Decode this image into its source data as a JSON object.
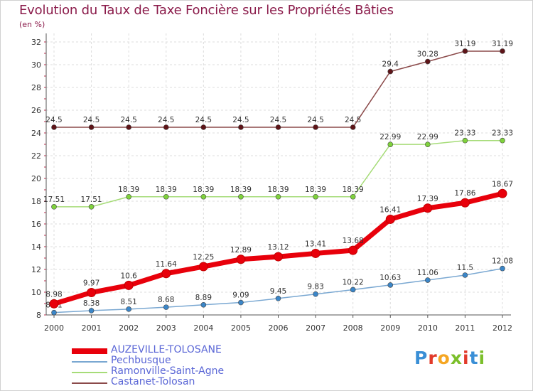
{
  "title": "Evolution du Taux de Taxe Foncière sur les Propriétés Bâties",
  "unit_label": "(en %)",
  "brand": {
    "text": "Proxiti",
    "letters": [
      {
        "ch": "P",
        "color": "#3a8fd6"
      },
      {
        "ch": "r",
        "color": "#e23a2a"
      },
      {
        "ch": "o",
        "color": "#f5a623"
      },
      {
        "ch": "x",
        "color": "#7bbf2a"
      },
      {
        "ch": "i",
        "color": "#e23a2a"
      },
      {
        "ch": "t",
        "color": "#3a8fd6"
      },
      {
        "ch": "i",
        "color": "#7bbf2a"
      }
    ]
  },
  "chart_data": {
    "type": "line",
    "title": "Evolution du Taux de Taxe Foncière sur les Propriétés Bâties",
    "ylabel": "(en %)",
    "xlabel": "",
    "x": [
      "2000",
      "2001",
      "2002",
      "2003",
      "2004",
      "2005",
      "2006",
      "2007",
      "2008",
      "2009",
      "2010",
      "2011",
      "2012"
    ],
    "ylim": [
      8,
      32
    ],
    "yticks": [
      "8",
      "10",
      "12",
      "14",
      "16",
      "18",
      "20",
      "22",
      "24",
      "26",
      "28",
      "30",
      "32"
    ],
    "grid": true,
    "legend_position": "bottom-left",
    "series": [
      {
        "name": "AUZEVILLE-TOLOSANE",
        "color": "#e8000b",
        "marker_color": "#e8000b",
        "emphasis": true,
        "values": [
          8.98,
          9.97,
          10.6,
          11.64,
          12.25,
          12.89,
          13.12,
          13.41,
          13.68,
          16.41,
          17.39,
          17.86,
          18.67
        ],
        "labels": [
          "8.98",
          "9.97",
          "10.6",
          "11.64",
          "12.25",
          "12.89",
          "13.12",
          "13.41",
          "13.68",
          "16.41",
          "17.39",
          "17.86",
          "18.67"
        ]
      },
      {
        "name": "Pechbusque",
        "color": "#7aa8d2",
        "marker_color": "#3b86c8",
        "emphasis": false,
        "values": [
          8.21,
          8.38,
          8.51,
          8.68,
          8.89,
          9.09,
          9.45,
          9.83,
          10.22,
          10.63,
          11.06,
          11.5,
          12.08
        ],
        "labels": [
          "8.21",
          "8.38",
          "8.51",
          "8.68",
          "8.89",
          "9.09",
          "9.45",
          "9.83",
          "10.22",
          "10.63",
          "11.06",
          "11.5",
          "12.08"
        ]
      },
      {
        "name": "Ramonville-Saint-Agne",
        "color": "#a6dc78",
        "marker_color": "#7fd23c",
        "emphasis": false,
        "values": [
          17.51,
          17.51,
          18.39,
          18.39,
          18.39,
          18.39,
          18.39,
          18.39,
          18.39,
          22.99,
          22.99,
          23.33,
          23.33
        ],
        "labels": [
          "17.51",
          "17.51",
          "18.39",
          "18.39",
          "18.39",
          "18.39",
          "18.39",
          "18.39",
          "18.39",
          "22.99",
          "22.99",
          "23.33",
          "23.33"
        ]
      },
      {
        "name": "Castanet-Tolosan",
        "color": "#8b4a4a",
        "marker_color": "#5e1418",
        "emphasis": false,
        "values": [
          24.5,
          24.5,
          24.5,
          24.5,
          24.5,
          24.5,
          24.5,
          24.5,
          24.5,
          29.4,
          30.28,
          31.19,
          31.19
        ],
        "labels": [
          "24.5",
          "24.5",
          "24.5",
          "24.5",
          "24.5",
          "24.5",
          "24.5",
          "24.5",
          "24.5",
          "29.4",
          "30.28",
          "31.19",
          "31.19"
        ]
      }
    ]
  }
}
